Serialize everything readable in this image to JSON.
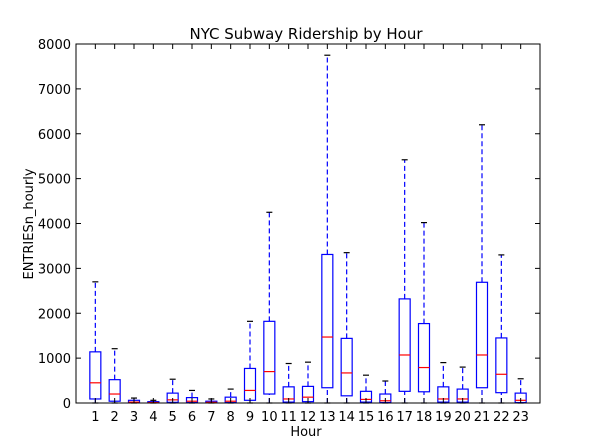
{
  "chart_data": {
    "type": "box",
    "title": "NYC Subway Ridership by Hour",
    "xlabel": "Hour",
    "ylabel": "ENTRIESn_hourly",
    "ylim": [
      0,
      8000
    ],
    "yticks": [
      0,
      1000,
      2000,
      3000,
      4000,
      5000,
      6000,
      7000,
      8000
    ],
    "grid": false,
    "categories": [
      "1",
      "2",
      "3",
      "4",
      "5",
      "6",
      "7",
      "8",
      "9",
      "10",
      "11",
      "12",
      "13",
      "14",
      "15",
      "16",
      "17",
      "18",
      "19",
      "20",
      "21",
      "22",
      "23"
    ],
    "boxes": [
      {
        "label": "1",
        "whisker_low": 0,
        "q1": 90,
        "median": 450,
        "q3": 1140,
        "whisker_high": 2700
      },
      {
        "label": "2",
        "whisker_low": 0,
        "q1": 40,
        "median": 200,
        "q3": 520,
        "whisker_high": 1210
      },
      {
        "label": "3",
        "whisker_low": 0,
        "q1": 5,
        "median": 20,
        "q3": 60,
        "whisker_high": 110
      },
      {
        "label": "4",
        "whisker_low": 0,
        "q1": 3,
        "median": 10,
        "q3": 30,
        "whisker_high": 60
      },
      {
        "label": "5",
        "whisker_low": 0,
        "q1": 15,
        "median": 70,
        "q3": 220,
        "whisker_high": 530
      },
      {
        "label": "6",
        "whisker_low": 0,
        "q1": 10,
        "median": 40,
        "q3": 120,
        "whisker_high": 280
      },
      {
        "label": "7",
        "whisker_low": 0,
        "q1": 5,
        "median": 15,
        "q3": 40,
        "whisker_high": 90
      },
      {
        "label": "8",
        "whisker_low": 0,
        "q1": 10,
        "median": 40,
        "q3": 130,
        "whisker_high": 310
      },
      {
        "label": "9",
        "whisker_low": 0,
        "q1": 60,
        "median": 280,
        "q3": 770,
        "whisker_high": 1820
      },
      {
        "label": "10",
        "whisker_low": 0,
        "q1": 200,
        "median": 700,
        "q3": 1820,
        "whisker_high": 4250
      },
      {
        "label": "11",
        "whisker_low": 0,
        "q1": 20,
        "median": 90,
        "q3": 360,
        "whisker_high": 880
      },
      {
        "label": "12",
        "whisker_low": 0,
        "q1": 30,
        "median": 130,
        "q3": 370,
        "whisker_high": 910
      },
      {
        "label": "13",
        "whisker_low": 0,
        "q1": 340,
        "median": 1470,
        "q3": 3310,
        "whisker_high": 7750
      },
      {
        "label": "14",
        "whisker_low": 0,
        "q1": 160,
        "median": 670,
        "q3": 1440,
        "whisker_high": 3350
      },
      {
        "label": "15",
        "whisker_low": 0,
        "q1": 20,
        "median": 80,
        "q3": 260,
        "whisker_high": 620
      },
      {
        "label": "16",
        "whisker_low": 0,
        "q1": 10,
        "median": 50,
        "q3": 200,
        "whisker_high": 490
      },
      {
        "label": "17",
        "whisker_low": 0,
        "q1": 260,
        "median": 1070,
        "q3": 2320,
        "whisker_high": 5420
      },
      {
        "label": "18",
        "whisker_low": 0,
        "q1": 250,
        "median": 790,
        "q3": 1770,
        "whisker_high": 4020
      },
      {
        "label": "19",
        "whisker_low": 0,
        "q1": 20,
        "median": 90,
        "q3": 360,
        "whisker_high": 900
      },
      {
        "label": "20",
        "whisker_low": 0,
        "q1": 20,
        "median": 90,
        "q3": 310,
        "whisker_high": 800
      },
      {
        "label": "21",
        "whisker_low": 0,
        "q1": 340,
        "median": 1070,
        "q3": 2690,
        "whisker_high": 6200
      },
      {
        "label": "22",
        "whisker_low": 0,
        "q1": 230,
        "median": 640,
        "q3": 1450,
        "whisker_high": 3300
      },
      {
        "label": "23",
        "whisker_low": 0,
        "q1": 10,
        "median": 60,
        "q3": 220,
        "whisker_high": 540
      }
    ],
    "colors": {
      "box": "#0000ff",
      "whisker": "#0000ff",
      "cap": "#000000",
      "median": "#ff0000",
      "axes": "#000000"
    }
  }
}
